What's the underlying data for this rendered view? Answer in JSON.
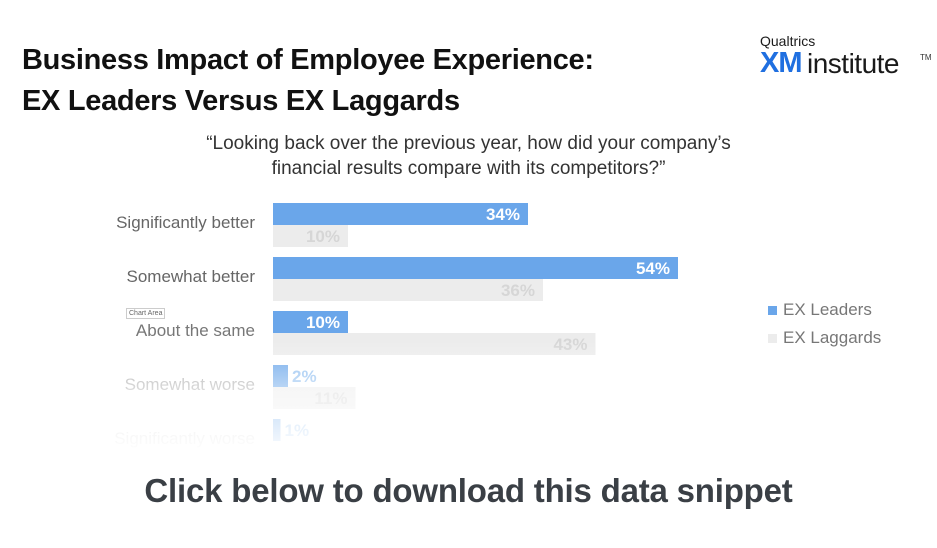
{
  "header": {
    "title_line1": "Business Impact of Employee Experience:",
    "title_line2": "EX Leaders Versus EX Laggards",
    "logo": {
      "brand": "Qualtrics",
      "xm": "XM",
      "institute": "institute",
      "tm": "TM"
    }
  },
  "question": {
    "line1": "“Looking back over the previous year, how did your company’s",
    "line2": "financial results compare with its competitors?”"
  },
  "chart_area_label": "Chart Area",
  "chart_data": {
    "type": "bar",
    "orientation": "horizontal",
    "categories": [
      "Significantly better",
      "Somewhat better",
      "About the same",
      "Somewhat worse",
      "Significantly worse"
    ],
    "series": [
      {
        "name": "EX Leaders",
        "values": [
          34,
          54,
          10,
          2,
          1
        ],
        "labels": [
          "34%",
          "54%",
          "10%",
          "2%",
          "1%"
        ],
        "color": "#6aa6ea"
      },
      {
        "name": "EX Laggards",
        "values": [
          10,
          36,
          43,
          11,
          null
        ],
        "labels": [
          "10%",
          "36%",
          "43%",
          "11%",
          ""
        ],
        "color": "#ececec"
      }
    ],
    "xlim": [
      0,
      60
    ],
    "grid": false,
    "legend_position": "right"
  },
  "cta": {
    "label": "Click below to download this data snippet"
  }
}
